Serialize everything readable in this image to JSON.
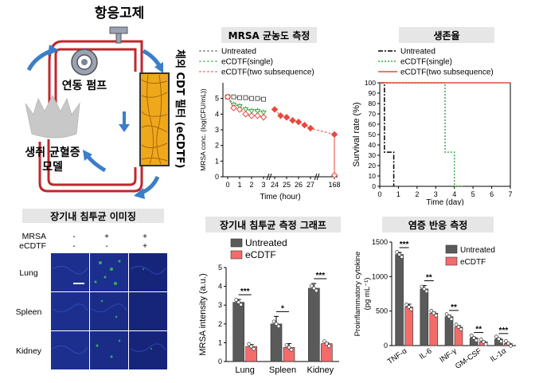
{
  "colors": {
    "tube": "#c0272d",
    "arrow": "#3b7ec9",
    "filter": "#f0a81b",
    "untreated": "#5a5a5a",
    "ecdtf": "#f36b6b",
    "single": "#39a845",
    "two": "#e8483e",
    "blueTissue": "#1c2f8e",
    "greenSignal": "#3cd24a"
  },
  "diagram": {
    "title": "항응고제",
    "pump": "연동 펌프",
    "model_line1": "생쥐 균혈증",
    "model_line2": "모델",
    "filter_label": "체외 CDT 필터 (eCDTF)"
  },
  "imaging": {
    "title": "장기내 침투균 이미징",
    "rows": [
      "MRSA",
      "eCDTF"
    ],
    "signs": [
      [
        "-",
        "+",
        "+"
      ],
      [
        "-",
        "-",
        "+"
      ]
    ],
    "organs": [
      "Lung",
      "Spleen",
      "Kidney"
    ]
  },
  "mrsa_title": "MRSA 균농도 측정",
  "survival_title": "생존율",
  "bargraph_title": "장기내 침투균 측정 그래프",
  "cytokine_title": "염증 반응 측정",
  "chart_data": [
    {
      "type": "line",
      "ylabel": "MRSA conc. (log(CFU/mL))",
      "xlabel": "Time (hour)",
      "x_ticks": [
        "0",
        "1",
        "2",
        "3",
        "24",
        "25",
        "26",
        "27",
        "168"
      ],
      "ylim": [
        0,
        6
      ],
      "y_ticks": [
        "0",
        "1",
        "2",
        "3",
        "4",
        "5"
      ],
      "series": [
        {
          "name": "Untreated",
          "x": [
            "0",
            "0.5",
            "1",
            "1.5",
            "2",
            "2.5",
            "3"
          ],
          "values": [
            5.1,
            5.1,
            5.05,
            5.05,
            5.0,
            5.0,
            4.95
          ],
          "err": [
            0.1,
            0.1,
            0.1,
            0.1,
            0.1,
            0.1,
            0.1
          ]
        },
        {
          "name": "eCDTF(single)",
          "x": [
            "0",
            "0.5",
            "1",
            "1.5",
            "2",
            "2.5",
            "3"
          ],
          "values": [
            5.1,
            4.6,
            4.5,
            4.3,
            4.2,
            4.2,
            4.1
          ],
          "err": [
            0.15,
            0.2,
            0.2,
            0.2,
            0.2,
            0.2,
            0.2
          ]
        },
        {
          "name": "eCDTF(two subsequence)",
          "x": [
            "0",
            "0.5",
            "1",
            "1.5",
            "2",
            "2.5",
            "3",
            "24",
            "24.5",
            "25",
            "25.5",
            "26",
            "26.5",
            "27",
            "27.5",
            "168"
          ],
          "values": [
            5.1,
            4.4,
            4.3,
            4.0,
            3.9,
            3.9,
            3.8,
            4.3,
            3.9,
            3.8,
            3.6,
            3.5,
            3.3,
            3.1,
            2.7,
            0.1
          ],
          "err": [
            0.15,
            0.2,
            0.2,
            0.2,
            0.2,
            0.2,
            0.2,
            0.15,
            0.2,
            0.2,
            0.2,
            0.2,
            0.2,
            0.2,
            0.2,
            0
          ]
        }
      ]
    },
    {
      "type": "line",
      "ylabel": "Survival rate (%)",
      "xlabel": "Time (day)",
      "xlim": [
        0,
        7
      ],
      "ylim": [
        0,
        100
      ],
      "x_ticks": [
        "0",
        "1",
        "2",
        "3",
        "4",
        "5",
        "6",
        "7"
      ],
      "y_ticks": [
        "0",
        "10",
        "20",
        "30",
        "40",
        "50",
        "60",
        "70",
        "80",
        "90",
        "100"
      ],
      "series": [
        {
          "name": "Untreated",
          "x": [
            0,
            0.25,
            0.25,
            0.5,
            0.5,
            0.75,
            0.75
          ],
          "values": [
            100,
            100,
            33,
            33,
            33,
            33,
            0
          ]
        },
        {
          "name": "eCDTF(single)",
          "x": [
            0,
            3.5,
            3.5,
            4.0,
            4.0,
            4.5
          ],
          "values": [
            100,
            100,
            33,
            33,
            0,
            0
          ]
        },
        {
          "name": "eCDTF(two subsequence)",
          "x": [
            0,
            7
          ],
          "values": [
            100,
            100
          ]
        }
      ]
    },
    {
      "type": "bar",
      "ylabel": "MRSA intensity (a.u.)",
      "categories": [
        "Lung",
        "Spleen",
        "Kidney"
      ],
      "ylim": [
        0,
        5
      ],
      "y_ticks": [
        "0",
        "1",
        "2",
        "3",
        "4",
        "5"
      ],
      "series": [
        {
          "name": "Untreated",
          "values": [
            3.15,
            2.0,
            3.9
          ],
          "err": [
            0.15,
            0.4,
            0.25
          ]
        },
        {
          "name": "eCDTF",
          "values": [
            0.8,
            0.75,
            0.95
          ],
          "err": [
            0.1,
            0.2,
            0.05
          ]
        }
      ],
      "significance": [
        "***",
        "*",
        "***"
      ]
    },
    {
      "type": "bar",
      "ylabel": "Proinflammatory cytokine",
      "ylabel2": "(pg mL⁻¹)",
      "categories": [
        "TNF-α",
        "IL-6",
        "INF-γ",
        "GM-CSF",
        "IL-1α"
      ],
      "ylim": [
        0,
        1500
      ],
      "y_ticks": [
        "0",
        "500",
        "1000",
        "1500"
      ],
      "series": [
        {
          "name": "Untreated",
          "values": [
            1320,
            820,
            420,
            110,
            95
          ],
          "err": [
            30,
            50,
            20,
            10,
            10
          ]
        },
        {
          "name": "eCDTF",
          "values": [
            560,
            470,
            270,
            55,
            30
          ],
          "err": [
            40,
            15,
            20,
            5,
            5
          ]
        }
      ],
      "significance": [
        "***",
        "**",
        "**",
        "**",
        "***"
      ]
    }
  ]
}
